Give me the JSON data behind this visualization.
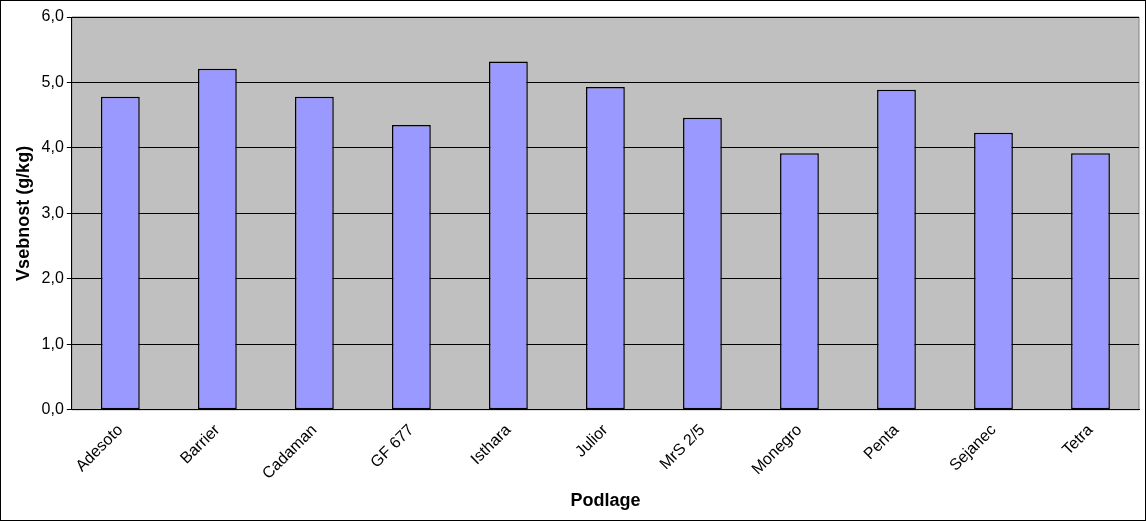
{
  "chart_data": {
    "type": "bar",
    "xlabel": "Podlage",
    "ylabel": "Vsebnost (g/kg)",
    "categories": [
      "Adesoto",
      "Barrier",
      "Cadaman",
      "GF 677",
      "Isthara",
      "Julior",
      "MrS 2/5",
      "Monegro",
      "Penta",
      "Sejanec",
      "Tetra"
    ],
    "values": [
      4.78,
      5.21,
      4.78,
      4.35,
      5.32,
      4.93,
      4.46,
      3.92,
      4.89,
      4.23,
      3.92
    ],
    "color": "#9999ff",
    "ylim": [
      0,
      6
    ],
    "yticks": [
      {
        "value": 0,
        "label": "0,0"
      },
      {
        "value": 1,
        "label": "1,0"
      },
      {
        "value": 2,
        "label": "2,0"
      },
      {
        "value": 3,
        "label": "3,0"
      },
      {
        "value": 4,
        "label": "4,0"
      },
      {
        "value": 5,
        "label": "5,0"
      },
      {
        "value": 6,
        "label": "6,0"
      }
    ],
    "grid": "y",
    "legend": false
  }
}
